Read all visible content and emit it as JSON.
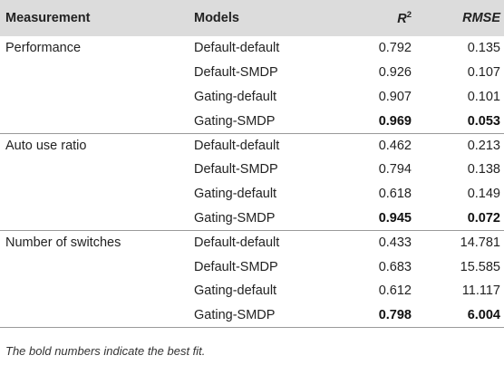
{
  "header": {
    "measurement": "Measurement",
    "models": "Models",
    "r2_base": "R",
    "r2_sup": "2",
    "rmse": "RMSE"
  },
  "groups": [
    {
      "measurement": "Performance",
      "rows": [
        {
          "model": "Default-default",
          "r2": "0.792",
          "rmse": "0.135",
          "best": false
        },
        {
          "model": "Default-SMDP",
          "r2": "0.926",
          "rmse": "0.107",
          "best": false
        },
        {
          "model": "Gating-default",
          "r2": "0.907",
          "rmse": "0.101",
          "best": false
        },
        {
          "model": "Gating-SMDP",
          "r2": "0.969",
          "rmse": "0.053",
          "best": true
        }
      ]
    },
    {
      "measurement": "Auto use ratio",
      "rows": [
        {
          "model": "Default-default",
          "r2": "0.462",
          "rmse": "0.213",
          "best": false
        },
        {
          "model": "Default-SMDP",
          "r2": "0.794",
          "rmse": "0.138",
          "best": false
        },
        {
          "model": "Gating-default",
          "r2": "0.618",
          "rmse": "0.149",
          "best": false
        },
        {
          "model": "Gating-SMDP",
          "r2": "0.945",
          "rmse": "0.072",
          "best": true
        }
      ]
    },
    {
      "measurement": "Number of switches",
      "rows": [
        {
          "model": "Default-default",
          "r2": "0.433",
          "rmse": "14.781",
          "best": false
        },
        {
          "model": "Default-SMDP",
          "r2": "0.683",
          "rmse": "15.585",
          "best": false
        },
        {
          "model": "Gating-default",
          "r2": "0.612",
          "rmse": "11.117",
          "best": false
        },
        {
          "model": "Gating-SMDP",
          "r2": "0.798",
          "rmse": "6.004",
          "best": true
        }
      ]
    }
  ],
  "footnote": "The bold numbers indicate the best fit."
}
